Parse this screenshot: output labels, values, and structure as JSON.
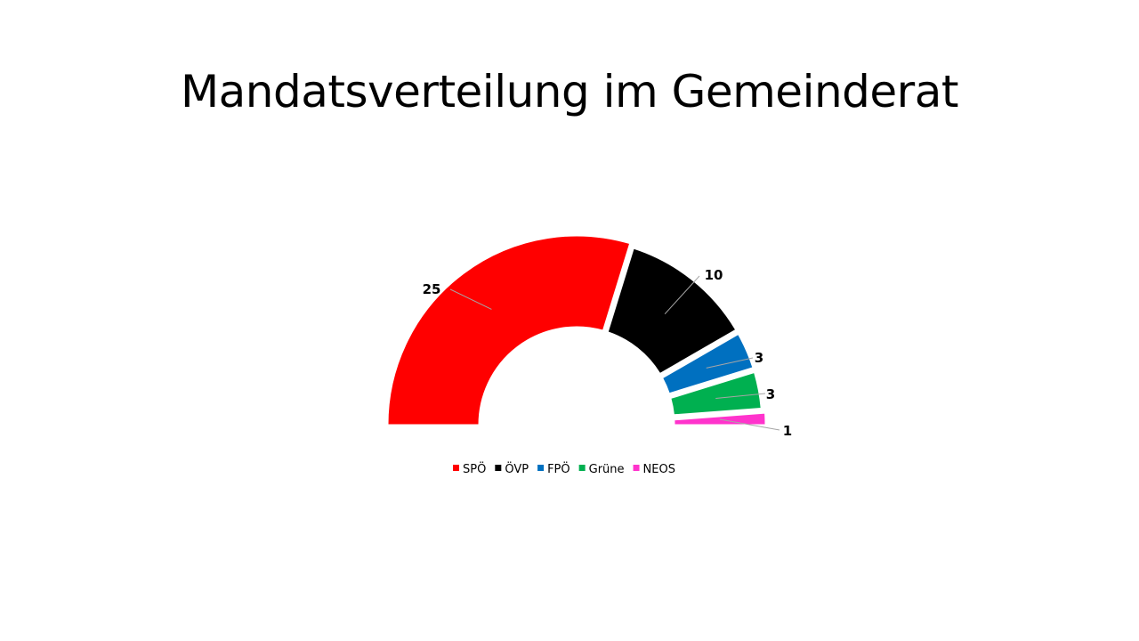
{
  "slide": {
    "title": "Mandatsverteilung im Gemeinderat"
  },
  "chart_data": {
    "type": "pie",
    "subtype": "half-donut",
    "title": "",
    "categories": [
      "SPÖ",
      "ÖVP",
      "FPÖ",
      "Grüne",
      "NEOS"
    ],
    "values": [
      25,
      10,
      3,
      3,
      1
    ],
    "colors": [
      "#ff0000",
      "#000000",
      "#0070c0",
      "#00b050",
      "#ff33cc"
    ],
    "data_labels": [
      "25",
      "10",
      "3",
      "3",
      "1"
    ],
    "legend_position": "bottom"
  }
}
